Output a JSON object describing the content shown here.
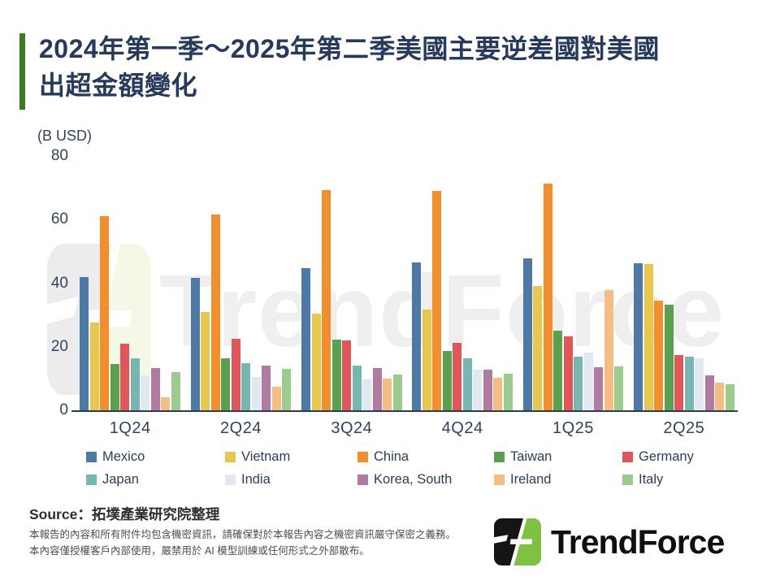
{
  "title": {
    "line1": "2024年第一季～2025年第二季美國主要逆差國對美國",
    "line2": "出超金額變化"
  },
  "accent_color": "#3a7d1f",
  "chart_data": {
    "type": "bar",
    "title": "2024年第一季～2025年第二季美國主要逆差國對美國出超金額變化",
    "unit_label": "(B USD)",
    "xlabel": "",
    "ylabel": "(B USD)",
    "ylim": [
      0,
      80
    ],
    "yticks": [
      0,
      20,
      40,
      60,
      80
    ],
    "grid": false,
    "legend_position": "bottom",
    "categories": [
      "1Q24",
      "2Q24",
      "3Q24",
      "4Q24",
      "1Q25",
      "2Q25"
    ],
    "series": [
      {
        "name": "Mexico",
        "color": "#4d79a7",
        "values": [
          42.0,
          41.6,
          44.8,
          46.6,
          47.7,
          46.4
        ]
      },
      {
        "name": "Vietnam",
        "color": "#e9c64e",
        "values": [
          27.5,
          31.0,
          30.5,
          31.8,
          39.0,
          46.0
        ]
      },
      {
        "name": "China",
        "color": "#f28e2b",
        "values": [
          61.0,
          61.7,
          69.3,
          69.1,
          71.2,
          34.4
        ]
      },
      {
        "name": "Taiwan",
        "color": "#59a14f",
        "values": [
          14.5,
          16.4,
          22.3,
          18.7,
          25.0,
          33.3
        ]
      },
      {
        "name": "Germany",
        "color": "#e15759",
        "values": [
          21.0,
          22.6,
          22.0,
          21.1,
          23.3,
          17.5
        ]
      },
      {
        "name": "Japan",
        "color": "#76b7b2",
        "values": [
          16.3,
          14.9,
          14.1,
          16.4,
          16.8,
          16.9
        ]
      },
      {
        "name": "India",
        "color": "#e1e8f2",
        "values": [
          11.0,
          10.6,
          9.8,
          12.7,
          18.2,
          16.4
        ]
      },
      {
        "name": "Korea, South",
        "color": "#b07aa1",
        "values": [
          13.4,
          14.0,
          13.2,
          12.9,
          13.6,
          11.0
        ]
      },
      {
        "name": "Ireland",
        "color": "#f6bd82",
        "values": [
          4.2,
          7.5,
          10.1,
          10.2,
          37.8,
          8.8
        ]
      },
      {
        "name": "Italy",
        "color": "#9ccb8e",
        "values": [
          12.0,
          13.0,
          11.3,
          11.5,
          13.9,
          8.3
        ]
      }
    ]
  },
  "watermark": {
    "text": "TrendForce"
  },
  "source": {
    "label": "Source：拓墣產業研究院整理"
  },
  "disclaimer": {
    "line1": "本報告的內容和所有附件均包含機密資訊，請確保對於本報告內容之機密資訊嚴守保密之義務。",
    "line2": "本內容僅授權客戶內部使用，嚴禁用於 AI 模型訓練或任何形式之外部散布。"
  },
  "logo": {
    "text": "TrendForce"
  }
}
